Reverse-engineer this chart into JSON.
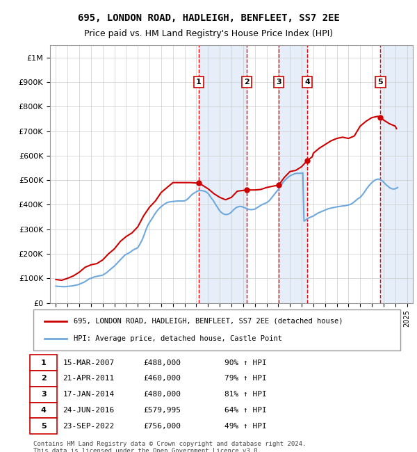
{
  "title_line1": "695, LONDON ROAD, HADLEIGH, BENFLEET, SS7 2EE",
  "title_line2": "Price paid vs. HM Land Registry's House Price Index (HPI)",
  "ylabel": "",
  "xlabel": "",
  "ylim": [
    0,
    1050000
  ],
  "yticks": [
    0,
    100000,
    200000,
    300000,
    400000,
    500000,
    600000,
    700000,
    800000,
    900000,
    1000000
  ],
  "ytick_labels": [
    "£0",
    "£100K",
    "£200K",
    "£300K",
    "£400K",
    "£500K",
    "£600K",
    "£700K",
    "£800K",
    "£900K",
    "£1M"
  ],
  "transactions": [
    {
      "num": 1,
      "date_str": "15-MAR-2007",
      "date_x": 2007.21,
      "price": 488000,
      "pct": "90%",
      "dir": "↑"
    },
    {
      "num": 2,
      "date_str": "21-APR-2011",
      "date_x": 2011.3,
      "price": 460000,
      "pct": "79%",
      "dir": "↑"
    },
    {
      "num": 3,
      "date_str": "17-JAN-2014",
      "date_x": 2014.04,
      "price": 480000,
      "pct": "81%",
      "dir": "↑"
    },
    {
      "num": 4,
      "date_str": "24-JUN-2016",
      "date_x": 2016.48,
      "price": 579995,
      "pct": "64%",
      "dir": "↑"
    },
    {
      "num": 5,
      "date_str": "23-SEP-2022",
      "date_x": 2022.73,
      "price": 756000,
      "pct": "49%",
      "dir": "↑"
    }
  ],
  "hpi_line_color": "#6fa8dc",
  "price_line_color": "#cc0000",
  "transaction_color": "#cc0000",
  "vline_color": "#ff0000",
  "shade_color": "#dce9f7",
  "legend_label_price": "695, LONDON ROAD, HADLEIGH, BENFLEET, SS7 2EE (detached house)",
  "legend_label_hpi": "HPI: Average price, detached house, Castle Point",
  "footnote": "Contains HM Land Registry data © Crown copyright and database right 2024.\nThis data is licensed under the Open Government Licence v3.0.",
  "background_color": "#ffffff",
  "plot_bg_color": "#ffffff",
  "grid_color": "#cccccc",
  "hpi_data": {
    "years": [
      1995.0,
      1995.1,
      1995.2,
      1995.3,
      1995.4,
      1995.5,
      1995.6,
      1995.7,
      1995.8,
      1995.9,
      1996.0,
      1996.1,
      1996.2,
      1996.3,
      1996.4,
      1996.5,
      1996.6,
      1996.7,
      1996.8,
      1996.9,
      1997.0,
      1997.1,
      1997.2,
      1997.3,
      1997.4,
      1997.5,
      1997.6,
      1997.7,
      1997.8,
      1997.9,
      1998.0,
      1998.1,
      1998.2,
      1998.3,
      1998.4,
      1998.5,
      1998.6,
      1998.7,
      1998.8,
      1998.9,
      1999.0,
      1999.1,
      1999.2,
      1999.3,
      1999.4,
      1999.5,
      1999.6,
      1999.7,
      1999.8,
      1999.9,
      2000.0,
      2000.1,
      2000.2,
      2000.3,
      2000.4,
      2000.5,
      2000.6,
      2000.7,
      2000.8,
      2000.9,
      2001.0,
      2001.1,
      2001.2,
      2001.3,
      2001.4,
      2001.5,
      2001.6,
      2001.7,
      2001.8,
      2001.9,
      2002.0,
      2002.1,
      2002.2,
      2002.3,
      2002.4,
      2002.5,
      2002.6,
      2002.7,
      2002.8,
      2002.9,
      2003.0,
      2003.1,
      2003.2,
      2003.3,
      2003.4,
      2003.5,
      2003.6,
      2003.7,
      2003.8,
      2003.9,
      2004.0,
      2004.1,
      2004.2,
      2004.3,
      2004.4,
      2004.5,
      2004.6,
      2004.7,
      2004.8,
      2004.9,
      2005.0,
      2005.1,
      2005.2,
      2005.3,
      2005.4,
      2005.5,
      2005.6,
      2005.7,
      2005.8,
      2005.9,
      2006.0,
      2006.1,
      2006.2,
      2006.3,
      2006.4,
      2006.5,
      2006.6,
      2006.7,
      2006.8,
      2006.9,
      2007.0,
      2007.1,
      2007.2,
      2007.3,
      2007.4,
      2007.5,
      2007.6,
      2007.7,
      2007.8,
      2007.9,
      2008.0,
      2008.1,
      2008.2,
      2008.3,
      2008.4,
      2008.5,
      2008.6,
      2008.7,
      2008.8,
      2008.9,
      2009.0,
      2009.1,
      2009.2,
      2009.3,
      2009.4,
      2009.5,
      2009.6,
      2009.7,
      2009.8,
      2009.9,
      2010.0,
      2010.1,
      2010.2,
      2010.3,
      2010.4,
      2010.5,
      2010.6,
      2010.7,
      2010.8,
      2010.9,
      2011.0,
      2011.1,
      2011.2,
      2011.3,
      2011.4,
      2011.5,
      2011.6,
      2011.7,
      2011.8,
      2011.9,
      2012.0,
      2012.1,
      2012.2,
      2012.3,
      2012.4,
      2012.5,
      2012.6,
      2012.7,
      2012.8,
      2012.9,
      2013.0,
      2013.1,
      2013.2,
      2013.3,
      2013.4,
      2013.5,
      2013.6,
      2013.7,
      2013.8,
      2013.9,
      2014.0,
      2014.1,
      2014.2,
      2014.3,
      2014.4,
      2014.5,
      2014.6,
      2014.7,
      2014.8,
      2014.9,
      2015.0,
      2015.1,
      2015.2,
      2015.3,
      2015.4,
      2015.5,
      2015.6,
      2015.7,
      2015.8,
      2015.9,
      2016.0,
      2016.1,
      2016.2,
      2016.3,
      2016.4,
      2016.5,
      2016.6,
      2016.7,
      2016.8,
      2016.9,
      2017.0,
      2017.1,
      2017.2,
      2017.3,
      2017.4,
      2017.5,
      2017.6,
      2017.7,
      2017.8,
      2017.9,
      2018.0,
      2018.1,
      2018.2,
      2018.3,
      2018.4,
      2018.5,
      2018.6,
      2018.7,
      2018.8,
      2018.9,
      2019.0,
      2019.1,
      2019.2,
      2019.3,
      2019.4,
      2019.5,
      2019.6,
      2019.7,
      2019.8,
      2019.9,
      2020.0,
      2020.1,
      2020.2,
      2020.3,
      2020.4,
      2020.5,
      2020.6,
      2020.7,
      2020.8,
      2020.9,
      2021.0,
      2021.1,
      2021.2,
      2021.3,
      2021.4,
      2021.5,
      2021.6,
      2021.7,
      2021.8,
      2021.9,
      2022.0,
      2022.1,
      2022.2,
      2022.3,
      2022.4,
      2022.5,
      2022.6,
      2022.7,
      2022.8,
      2022.9,
      2023.0,
      2023.1,
      2023.2,
      2023.3,
      2023.4,
      2023.5,
      2023.6,
      2023.7,
      2023.8,
      2023.9,
      2024.0,
      2024.1,
      2024.2
    ],
    "values": [
      68000,
      67500,
      67000,
      66800,
      66500,
      66200,
      66000,
      65800,
      66000,
      66200,
      67000,
      67500,
      68000,
      68500,
      69000,
      70000,
      71000,
      72000,
      73000,
      74000,
      76000,
      78000,
      80000,
      82000,
      84000,
      87000,
      90000,
      93000,
      96000,
      99000,
      100000,
      102000,
      104000,
      106000,
      107000,
      108000,
      109000,
      110000,
      111000,
      111500,
      113000,
      116000,
      119000,
      122000,
      126000,
      130000,
      134000,
      138000,
      142000,
      146000,
      150000,
      155000,
      160000,
      165000,
      170000,
      175000,
      180000,
      185000,
      190000,
      195000,
      198000,
      200000,
      202000,
      205000,
      208000,
      212000,
      215000,
      218000,
      220000,
      222000,
      225000,
      233000,
      241000,
      250000,
      260000,
      272000,
      285000,
      298000,
      310000,
      320000,
      328000,
      335000,
      342000,
      350000,
      358000,
      365000,
      372000,
      378000,
      383000,
      388000,
      392000,
      396000,
      400000,
      403000,
      406000,
      408000,
      410000,
      411000,
      412000,
      412500,
      413000,
      413500,
      414000,
      414500,
      415000,
      415000,
      415000,
      415000,
      415000,
      415000,
      416000,
      418000,
      421000,
      425000,
      430000,
      435000,
      440000,
      444000,
      447000,
      450000,
      453000,
      455000,
      457000,
      458000,
      458000,
      457000,
      456000,
      455000,
      453000,
      450000,
      446000,
      440000,
      433000,
      426000,
      420000,
      413000,
      405000,
      397000,
      390000,
      382000,
      375000,
      370000,
      366000,
      363000,
      361000,
      360000,
      360000,
      361000,
      363000,
      366000,
      370000,
      375000,
      380000,
      384000,
      388000,
      390000,
      392000,
      393000,
      393000,
      392000,
      390000,
      388000,
      386000,
      384000,
      382000,
      381000,
      380000,
      380000,
      380000,
      381000,
      382000,
      385000,
      388000,
      391000,
      394000,
      397000,
      400000,
      402000,
      404000,
      406000,
      408000,
      411000,
      415000,
      420000,
      426000,
      432000,
      438000,
      444000,
      450000,
      456000,
      462000,
      469000,
      476000,
      483000,
      490000,
      496000,
      501000,
      506000,
      510000,
      514000,
      517000,
      520000,
      522000,
      524000,
      526000,
      527000,
      528000,
      528000,
      528000,
      528000,
      528000,
      530000,
      333000,
      336000,
      340000,
      343000,
      346000,
      348000,
      350000,
      352000,
      354000,
      357000,
      360000,
      363000,
      366000,
      368000,
      370000,
      372000,
      374000,
      376000,
      378000,
      380000,
      382000,
      384000,
      385000,
      386000,
      387000,
      388000,
      389000,
      390000,
      391000,
      392000,
      393000,
      393000,
      394000,
      395000,
      395000,
      396000,
      397000,
      398000,
      399000,
      400000,
      402000,
      405000,
      408000,
      412000,
      416000,
      420000,
      424000,
      427000,
      430000,
      435000,
      441000,
      447000,
      454000,
      461000,
      468000,
      474000,
      480000,
      485000,
      490000,
      494000,
      498000,
      501000,
      503000,
      504000,
      504000,
      503000,
      500000,
      497000,
      492000,
      487000,
      482000,
      478000,
      474000,
      470000,
      467000,
      465000,
      464000,
      464000,
      465000,
      467000,
      470000
    ]
  },
  "price_data": {
    "years": [
      1995.0,
      1995.5,
      1996.0,
      1996.5,
      1997.0,
      1997.5,
      1998.0,
      1998.5,
      1999.0,
      1999.5,
      2000.0,
      2000.5,
      2001.0,
      2001.5,
      2002.0,
      2002.5,
      2003.0,
      2003.5,
      2004.0,
      2004.5,
      2005.0,
      2005.5,
      2006.0,
      2006.5,
      2007.21,
      2007.5,
      2008.0,
      2008.5,
      2009.0,
      2009.5,
      2010.0,
      2010.5,
      2011.3,
      2011.5,
      2012.0,
      2012.5,
      2013.0,
      2013.5,
      2014.04,
      2014.5,
      2015.0,
      2015.5,
      2016.0,
      2016.48,
      2016.9,
      2017.0,
      2017.5,
      2018.0,
      2018.5,
      2019.0,
      2019.5,
      2020.0,
      2020.5,
      2021.0,
      2021.5,
      2022.0,
      2022.5,
      2022.73,
      2023.0,
      2023.5,
      2024.0,
      2024.1
    ],
    "values": [
      95000,
      92000,
      100000,
      110000,
      125000,
      145000,
      155000,
      160000,
      175000,
      200000,
      220000,
      250000,
      270000,
      285000,
      310000,
      355000,
      390000,
      415000,
      450000,
      470000,
      490000,
      490000,
      490000,
      490000,
      488000,
      480000,
      465000,
      445000,
      430000,
      420000,
      430000,
      455000,
      460000,
      460000,
      460000,
      462000,
      470000,
      475000,
      480000,
      510000,
      535000,
      540000,
      555000,
      579995,
      595000,
      610000,
      630000,
      645000,
      660000,
      670000,
      675000,
      670000,
      680000,
      720000,
      740000,
      755000,
      760000,
      756000,
      745000,
      730000,
      720000,
      710000
    ]
  },
  "xtick_years": [
    1995,
    1996,
    1997,
    1998,
    1999,
    2000,
    2001,
    2002,
    2003,
    2004,
    2005,
    2006,
    2007,
    2008,
    2009,
    2010,
    2011,
    2012,
    2013,
    2014,
    2015,
    2016,
    2017,
    2018,
    2019,
    2020,
    2021,
    2022,
    2023,
    2024,
    2025
  ],
  "xlim": [
    1994.5,
    2025.5
  ]
}
